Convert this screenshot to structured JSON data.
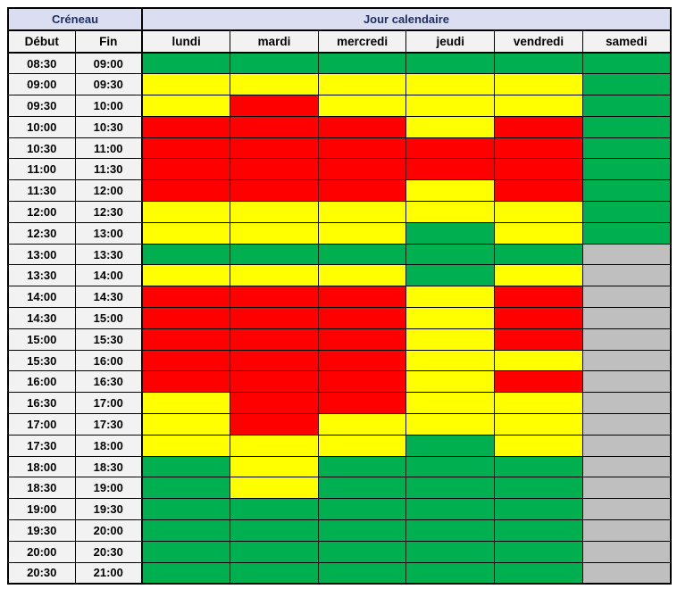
{
  "header": {
    "creneau_label": "Créneau",
    "jour_calendaire_label": "Jour calendaire",
    "debut_label": "Début",
    "fin_label": "Fin"
  },
  "days": [
    "lundi",
    "mardi",
    "mercredi",
    "jeudi",
    "vendredi",
    "samedi"
  ],
  "colors": {
    "green": "#00B050",
    "yellow": "#FFFF00",
    "red": "#FF0000",
    "gray": "#BFBFBF",
    "header_bg": "#DBDEF1",
    "subheader_bg": "#F2F2F2",
    "header_text": "#1F3060",
    "grid_border": "#000000"
  },
  "chart_data": {
    "type": "heatmap",
    "columns": [
      "lundi",
      "mardi",
      "mercredi",
      "jeudi",
      "vendredi",
      "samedi"
    ],
    "row_label_columns": [
      "Début",
      "Fin"
    ],
    "legend": "off",
    "rows": [
      {
        "debut": "08:30",
        "fin": "09:00",
        "cells": [
          "green",
          "green",
          "green",
          "green",
          "green",
          "green"
        ]
      },
      {
        "debut": "09:00",
        "fin": "09:30",
        "cells": [
          "yellow",
          "yellow",
          "yellow",
          "yellow",
          "yellow",
          "green"
        ]
      },
      {
        "debut": "09:30",
        "fin": "10:00",
        "cells": [
          "yellow",
          "red",
          "yellow",
          "yellow",
          "yellow",
          "green"
        ]
      },
      {
        "debut": "10:00",
        "fin": "10:30",
        "cells": [
          "red",
          "red",
          "red",
          "yellow",
          "red",
          "green"
        ]
      },
      {
        "debut": "10:30",
        "fin": "11:00",
        "cells": [
          "red",
          "red",
          "red",
          "red",
          "red",
          "green"
        ]
      },
      {
        "debut": "11:00",
        "fin": "11:30",
        "cells": [
          "red",
          "red",
          "red",
          "red",
          "red",
          "green"
        ]
      },
      {
        "debut": "11:30",
        "fin": "12:00",
        "cells": [
          "red",
          "red",
          "red",
          "yellow",
          "red",
          "green"
        ]
      },
      {
        "debut": "12:00",
        "fin": "12:30",
        "cells": [
          "yellow",
          "yellow",
          "yellow",
          "yellow",
          "yellow",
          "green"
        ]
      },
      {
        "debut": "12:30",
        "fin": "13:00",
        "cells": [
          "yellow",
          "yellow",
          "yellow",
          "green",
          "yellow",
          "green"
        ]
      },
      {
        "debut": "13:00",
        "fin": "13:30",
        "cells": [
          "green",
          "green",
          "green",
          "green",
          "green",
          "gray"
        ]
      },
      {
        "debut": "13:30",
        "fin": "14:00",
        "cells": [
          "yellow",
          "yellow",
          "yellow",
          "green",
          "yellow",
          "gray"
        ]
      },
      {
        "debut": "14:00",
        "fin": "14:30",
        "cells": [
          "red",
          "red",
          "red",
          "yellow",
          "red",
          "gray"
        ]
      },
      {
        "debut": "14:30",
        "fin": "15:00",
        "cells": [
          "red",
          "red",
          "red",
          "yellow",
          "red",
          "gray"
        ]
      },
      {
        "debut": "15:00",
        "fin": "15:30",
        "cells": [
          "red",
          "red",
          "red",
          "yellow",
          "red",
          "gray"
        ]
      },
      {
        "debut": "15:30",
        "fin": "16:00",
        "cells": [
          "red",
          "red",
          "red",
          "yellow",
          "yellow",
          "gray"
        ]
      },
      {
        "debut": "16:00",
        "fin": "16:30",
        "cells": [
          "red",
          "red",
          "red",
          "yellow",
          "red",
          "gray"
        ]
      },
      {
        "debut": "16:30",
        "fin": "17:00",
        "cells": [
          "yellow",
          "red",
          "red",
          "yellow",
          "yellow",
          "gray"
        ]
      },
      {
        "debut": "17:00",
        "fin": "17:30",
        "cells": [
          "yellow",
          "red",
          "yellow",
          "yellow",
          "yellow",
          "gray"
        ]
      },
      {
        "debut": "17:30",
        "fin": "18:00",
        "cells": [
          "yellow",
          "yellow",
          "yellow",
          "green",
          "yellow",
          "gray"
        ]
      },
      {
        "debut": "18:00",
        "fin": "18:30",
        "cells": [
          "green",
          "yellow",
          "green",
          "green",
          "green",
          "gray"
        ]
      },
      {
        "debut": "18:30",
        "fin": "19:00",
        "cells": [
          "green",
          "yellow",
          "green",
          "green",
          "green",
          "gray"
        ]
      },
      {
        "debut": "19:00",
        "fin": "19:30",
        "cells": [
          "green",
          "green",
          "green",
          "green",
          "green",
          "gray"
        ]
      },
      {
        "debut": "19:30",
        "fin": "20:00",
        "cells": [
          "green",
          "green",
          "green",
          "green",
          "green",
          "gray"
        ]
      },
      {
        "debut": "20:00",
        "fin": "20:30",
        "cells": [
          "green",
          "green",
          "green",
          "green",
          "green",
          "gray"
        ]
      },
      {
        "debut": "20:30",
        "fin": "21:00",
        "cells": [
          "green",
          "green",
          "green",
          "green",
          "green",
          "gray"
        ]
      }
    ]
  }
}
